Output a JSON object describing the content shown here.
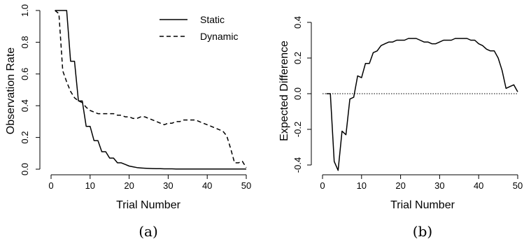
{
  "chart_data": [
    {
      "type": "line",
      "caption": "(a)",
      "xlabel": "Trial Number",
      "ylabel": "Observation Rate",
      "xlim": [
        0,
        50
      ],
      "ylim": [
        0,
        1
      ],
      "xticks": [
        "0",
        "10",
        "20",
        "30",
        "40",
        "50"
      ],
      "yticks": [
        "0.0",
        "0.2",
        "0.4",
        "0.6",
        "0.8",
        "1.0"
      ],
      "legend_position": "top-right",
      "series": [
        {
          "name": "Static",
          "style": "solid",
          "x": [
            1,
            2,
            3,
            4,
            5,
            6,
            7,
            8,
            9,
            10,
            11,
            12,
            13,
            14,
            15,
            16,
            17,
            18,
            19,
            20,
            21,
            22,
            23,
            24,
            25,
            26,
            27,
            28,
            29,
            30,
            31,
            32,
            33,
            34,
            35,
            36,
            37,
            38,
            39,
            40,
            41,
            42,
            43,
            44,
            45,
            46,
            47,
            48,
            49,
            50
          ],
          "y": [
            1.0,
            1.0,
            1.0,
            1.0,
            0.68,
            0.68,
            0.43,
            0.43,
            0.27,
            0.27,
            0.18,
            0.18,
            0.11,
            0.11,
            0.07,
            0.07,
            0.04,
            0.04,
            0.03,
            0.02,
            0.015,
            0.01,
            0.008,
            0.006,
            0.005,
            0.004,
            0.003,
            0.003,
            0.002,
            0.002,
            0.002,
            0.001,
            0.001,
            0.001,
            0.001,
            0.001,
            0.001,
            0.001,
            0.001,
            0.001,
            0.001,
            0.001,
            0.001,
            0.001,
            0.001,
            0.001,
            0.001,
            0.001,
            0.001,
            0.001
          ]
        },
        {
          "name": "Dynamic",
          "style": "dashed",
          "x": [
            1,
            2,
            3,
            4,
            5,
            6,
            7,
            8,
            9,
            10,
            11,
            12,
            13,
            14,
            15,
            16,
            17,
            18,
            19,
            20,
            21,
            22,
            23,
            24,
            25,
            26,
            27,
            28,
            29,
            30,
            31,
            32,
            33,
            34,
            35,
            36,
            37,
            38,
            39,
            40,
            41,
            42,
            43,
            44,
            45,
            46,
            47,
            48,
            49,
            50
          ],
          "y": [
            1.0,
            0.98,
            0.62,
            0.55,
            0.49,
            0.45,
            0.43,
            0.42,
            0.39,
            0.37,
            0.36,
            0.35,
            0.35,
            0.35,
            0.35,
            0.35,
            0.34,
            0.34,
            0.33,
            0.33,
            0.32,
            0.32,
            0.33,
            0.33,
            0.32,
            0.31,
            0.3,
            0.29,
            0.28,
            0.29,
            0.29,
            0.3,
            0.3,
            0.31,
            0.31,
            0.31,
            0.31,
            0.3,
            0.29,
            0.28,
            0.27,
            0.26,
            0.25,
            0.24,
            0.21,
            0.13,
            0.04,
            0.04,
            0.05,
            0.01
          ]
        }
      ]
    },
    {
      "type": "line",
      "caption": "(b)",
      "xlabel": "Trial Number",
      "ylabel": "Expected Difference",
      "xlim": [
        0,
        50
      ],
      "ylim": [
        -0.45,
        0.42
      ],
      "xticks": [
        "0",
        "10",
        "20",
        "30",
        "40",
        "50"
      ],
      "yticks": [
        "-0.4",
        "-0.2",
        "0.0",
        "0.2",
        "0.4"
      ],
      "reference_line": {
        "y": 0,
        "style": "dotted"
      },
      "series": [
        {
          "style": "solid",
          "x": [
            1,
            2,
            3,
            4,
            5,
            6,
            7,
            8,
            9,
            10,
            11,
            12,
            13,
            14,
            15,
            16,
            17,
            18,
            19,
            20,
            21,
            22,
            23,
            24,
            25,
            26,
            27,
            28,
            29,
            30,
            31,
            32,
            33,
            34,
            35,
            36,
            37,
            38,
            39,
            40,
            41,
            42,
            43,
            44,
            45,
            46,
            47,
            48,
            49,
            50
          ],
          "y": [
            0.0,
            0.0,
            -0.38,
            -0.43,
            -0.21,
            -0.23,
            -0.03,
            -0.02,
            0.1,
            0.09,
            0.17,
            0.17,
            0.23,
            0.24,
            0.27,
            0.28,
            0.29,
            0.29,
            0.3,
            0.3,
            0.3,
            0.31,
            0.31,
            0.31,
            0.3,
            0.29,
            0.29,
            0.28,
            0.28,
            0.29,
            0.3,
            0.3,
            0.3,
            0.31,
            0.31,
            0.31,
            0.31,
            0.3,
            0.3,
            0.28,
            0.27,
            0.25,
            0.24,
            0.24,
            0.2,
            0.13,
            0.03,
            0.04,
            0.05,
            0.01
          ]
        }
      ]
    }
  ]
}
